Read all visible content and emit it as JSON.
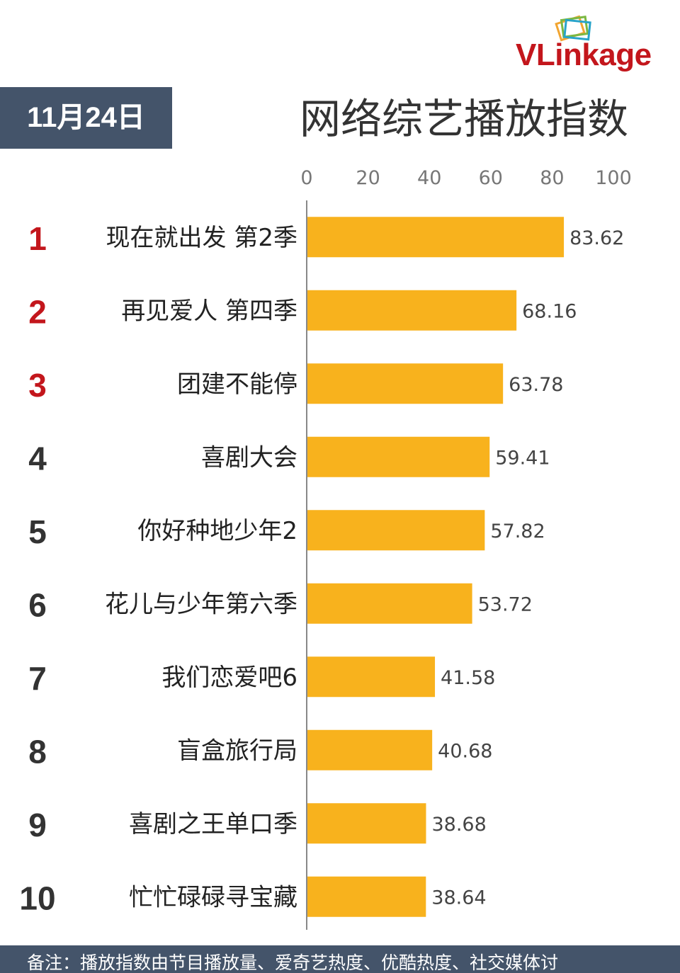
{
  "brand": {
    "logo_vl": "VL",
    "logo_rest": "inkage"
  },
  "date_label": "11月24日",
  "title": "网络综艺播放指数",
  "footer_note": "备注：播放指数由节目播放量、爱奇艺热度、优酷热度、社交媒体讨",
  "colors": {
    "bar": "#f8b21d",
    "rank_top": "#c3161c",
    "rank_other": "#333333",
    "axis": "#888888",
    "header_box": "#44546a"
  },
  "chart_data": {
    "type": "bar",
    "orientation": "horizontal",
    "title": "网络综艺播放指数",
    "xlim": [
      0,
      100
    ],
    "x_ticks": [
      "0",
      "20",
      "40",
      "60",
      "80",
      "100"
    ],
    "x_tick_values": [
      0,
      20,
      40,
      60,
      80,
      100
    ],
    "grid": false,
    "ranks": [
      "1",
      "2",
      "3",
      "4",
      "5",
      "6",
      "7",
      "8",
      "9",
      "10"
    ],
    "categories": [
      "现在就出发 第2季",
      "再见爱人 第四季",
      "团建不能停",
      "喜剧大会",
      "你好种地少年2",
      "花儿与少年第六季",
      "我们恋爱吧6",
      "盲盒旅行局",
      "喜剧之王单口季",
      "忙忙碌碌寻宝藏"
    ],
    "values": [
      83.62,
      68.16,
      63.78,
      59.41,
      57.82,
      53.72,
      41.58,
      40.68,
      38.68,
      38.64
    ],
    "value_labels": [
      "83.62",
      "68.16",
      "63.78",
      "59.41",
      "57.82",
      "53.72",
      "41.58",
      "40.68",
      "38.68",
      "38.64"
    ]
  }
}
